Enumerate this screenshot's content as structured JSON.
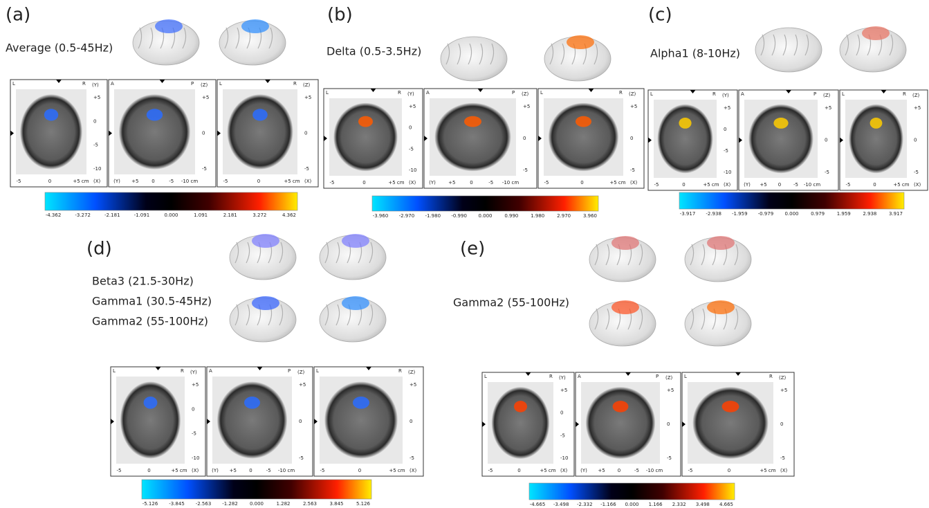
{
  "panels": [
    {
      "letter": "(a)",
      "bands": [
        "Average  (0.5-45Hz)"
      ],
      "slices": [
        {
          "corners": [
            "L",
            "R"
          ],
          "side": "(Y)",
          "yticks": [
            "+5",
            "0",
            "-5",
            "-10"
          ],
          "xticks": [
            "-5",
            "0",
            "+5 cm"
          ],
          "xlabel": "(X)"
        },
        {
          "corners": [
            "A",
            "P"
          ],
          "side": "(Z)",
          "yticks": [
            "+5",
            "0",
            "-5"
          ],
          "xticks": [
            "(Y)",
            "+5",
            "0",
            "-5",
            "-10 cm"
          ],
          "xlabel": ""
        },
        {
          "corners": [
            "L",
            "R"
          ],
          "side": "(Z)",
          "yticks": [
            "+5",
            "0",
            "-5"
          ],
          "xticks": [
            "-5",
            "0",
            "+5 cm"
          ],
          "xlabel": "(X)"
        }
      ],
      "colorbar": [
        "-4.362",
        "-3.272",
        "-2.181",
        "-1.091",
        "0.000",
        "1.091",
        "2.181",
        "3.272",
        "4.362"
      ]
    },
    {
      "letter": "(b)",
      "bands": [
        "Delta  (0.5-3.5Hz)"
      ],
      "slices": [
        {
          "corners": [
            "L",
            "R"
          ],
          "side": "(Y)",
          "yticks": [
            "+5",
            "0",
            "-5",
            "-10"
          ],
          "xticks": [
            "-5",
            "0",
            "+5 cm"
          ],
          "xlabel": "(X)"
        },
        {
          "corners": [
            "A",
            "P"
          ],
          "side": "(Z)",
          "yticks": [
            "+5",
            "0",
            "-5"
          ],
          "xticks": [
            "(Y)",
            "+5",
            "0",
            "-5",
            "-10 cm"
          ],
          "xlabel": ""
        },
        {
          "corners": [
            "L",
            "R"
          ],
          "side": "(Z)",
          "yticks": [
            "+5",
            "0",
            "-5"
          ],
          "xticks": [
            "-5",
            "0",
            "+5 cm"
          ],
          "xlabel": "(X)"
        }
      ],
      "colorbar": [
        "-3.960",
        "-2.970",
        "-1.980",
        "-0.990",
        "0.000",
        "0.990",
        "1.980",
        "2.970",
        "3.960"
      ]
    },
    {
      "letter": "(c)",
      "bands": [
        "Alpha1  (8-10Hz)"
      ],
      "slices": [
        {
          "corners": [
            "L",
            "R"
          ],
          "side": "(Y)",
          "yticks": [
            "+5",
            "0",
            "-5",
            "-10"
          ],
          "xticks": [
            "-5",
            "0",
            "+5 cm"
          ],
          "xlabel": "(X)"
        },
        {
          "corners": [
            "A",
            "P"
          ],
          "side": "(Z)",
          "yticks": [
            "+5",
            "0",
            "-5"
          ],
          "xticks": [
            "(Y)",
            "+5",
            "0",
            "-5",
            "-10 cm"
          ],
          "xlabel": ""
        },
        {
          "corners": [
            "L",
            "R"
          ],
          "side": "(Z)",
          "yticks": [
            "+5",
            "0",
            "-5"
          ],
          "xticks": [
            "-5",
            "0",
            "+5 cm"
          ],
          "xlabel": "(X)"
        }
      ],
      "colorbar": [
        "-3.917",
        "-2.938",
        "-1.959",
        "-0.979",
        "0.000",
        "0.979",
        "1.959",
        "2.938",
        "3.917"
      ]
    },
    {
      "letter": "(d)",
      "bands": [
        "Beta3  (21.5-30Hz)",
        "Gamma1  (30.5-45Hz)",
        "Gamma2  (55-100Hz)"
      ],
      "slices": [
        {
          "corners": [
            "L",
            "R"
          ],
          "side": "(Y)",
          "yticks": [
            "+5",
            "0",
            "-5",
            "-10"
          ],
          "xticks": [
            "-5",
            "0",
            "+5 cm"
          ],
          "xlabel": "(X)"
        },
        {
          "corners": [
            "A",
            "P"
          ],
          "side": "(Z)",
          "yticks": [
            "+5",
            "0",
            "-5"
          ],
          "xticks": [
            "(Y)",
            "+5",
            "0",
            "-5",
            "-10 cm"
          ],
          "xlabel": ""
        },
        {
          "corners": [
            "L",
            "R"
          ],
          "side": "(Z)",
          "yticks": [
            "+5",
            "0",
            "-5"
          ],
          "xticks": [
            "-5",
            "0",
            "+5 cm"
          ],
          "xlabel": "(X)"
        }
      ],
      "colorbar": [
        "-5.126",
        "-3.845",
        "-2.563",
        "-1.282",
        "0.000",
        "1.282",
        "2.563",
        "3.845",
        "5.126"
      ]
    },
    {
      "letter": "(e)",
      "bands": [
        "Gamma2  (55-100Hz)"
      ],
      "slices": [
        {
          "corners": [
            "L",
            "R"
          ],
          "side": "(Y)",
          "yticks": [
            "+5",
            "0",
            "-5",
            "-10"
          ],
          "xticks": [
            "-5",
            "0",
            "+5 cm"
          ],
          "xlabel": "(X)"
        },
        {
          "corners": [
            "A",
            "P"
          ],
          "side": "(Z)",
          "yticks": [
            "+5",
            "0",
            "-5"
          ],
          "xticks": [
            "(Y)",
            "+5",
            "0",
            "-5",
            "-10 cm"
          ],
          "xlabel": ""
        },
        {
          "corners": [
            "L",
            "R"
          ],
          "side": "(Z)",
          "yticks": [
            "+5",
            "0",
            "-5"
          ],
          "xticks": [
            "-5",
            "0",
            "+5 cm"
          ],
          "xlabel": "(X)"
        }
      ],
      "colorbar": [
        "-4.665",
        "-3.498",
        "-2.332",
        "-1.166",
        "0.000",
        "1.166",
        "2.332",
        "3.498",
        "4.665"
      ]
    }
  ]
}
